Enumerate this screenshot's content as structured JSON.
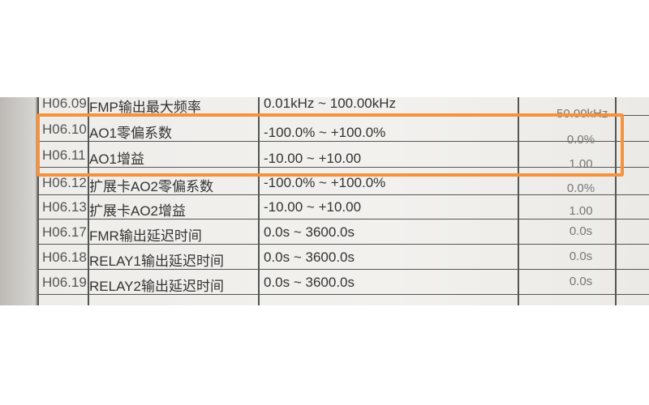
{
  "table": {
    "rows": [
      {
        "code": "H06.09",
        "name": "FMP输出最大频率",
        "range": "0.01kHz ~ 100.00kHz",
        "default": "50.00kHz"
      },
      {
        "code": "H06.10",
        "name": "AO1零偏系数",
        "range": "-100.0% ~ +100.0%",
        "default": "0.0%"
      },
      {
        "code": "H06.11",
        "name": "AO1增益",
        "range": "-10.00 ~ +10.00",
        "default": "1.00"
      },
      {
        "code": "H06.12",
        "name": "扩展卡AO2零偏系数",
        "range": "-100.0% ~ +100.0%",
        "default": "0.0%"
      },
      {
        "code": "H06.13",
        "name": "扩展卡AO2增益",
        "range": "-10.00 ~ +10.00",
        "default": "1.00"
      },
      {
        "code": "H06.17",
        "name": "FMR输出延迟时间",
        "range": "0.0s ~ 3600.0s",
        "default": "0.0s"
      },
      {
        "code": "H06.18",
        "name": "RELAY1输出延迟时间",
        "range": "0.0s ~ 3600.0s",
        "default": "0.0s"
      },
      {
        "code": "H06.19",
        "name": "RELAY2输出延迟时间",
        "range": "0.0s ~ 3600.0s",
        "default": "0.0s"
      }
    ]
  },
  "highlight": {
    "color": "#f5923e",
    "rows": [
      "H06.10",
      "H06.11"
    ]
  }
}
